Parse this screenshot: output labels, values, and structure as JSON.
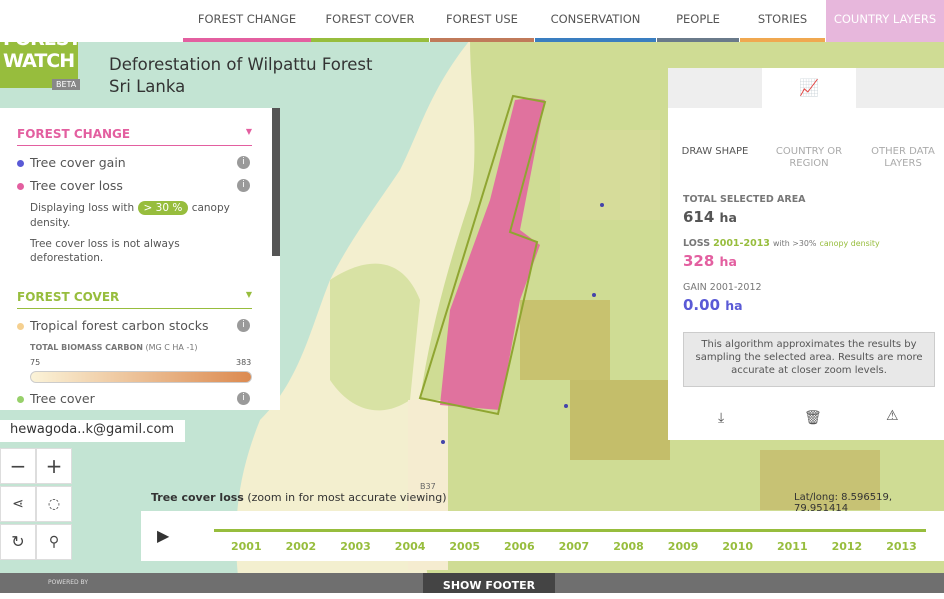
{
  "logo": {
    "title": "GLOBAL FOREST WATCH",
    "badge": "BETA"
  },
  "nav": [
    "FOREST CHANGE",
    "FOREST COVER",
    "FOREST USE",
    "CONSERVATION",
    "PEOPLE",
    "STORIES",
    "COUNTRY LAYERS"
  ],
  "header": {
    "title": "Deforestation of  Wilpattu Forest",
    "subtitle": "Sri Lanka"
  },
  "layers": {
    "forest_change": {
      "heading": "FOREST CHANGE",
      "gain": "Tree cover gain",
      "loss": "Tree cover loss",
      "display_prefix": "Displaying loss with",
      "threshold": "> 30 %",
      "display_suffix": "canopy density.",
      "note": "Tree cover loss is not always deforestation."
    },
    "forest_cover": {
      "heading": "FOREST COVER",
      "carbon": "Tropical forest carbon stocks",
      "legend_title": "TOTAL BIOMASS CARBON",
      "legend_unit": "(MG C HA -1)",
      "legend_min": "75",
      "legend_max": "383",
      "tree_cover": "Tree cover"
    }
  },
  "user": "hewagoda..k@gamil.com",
  "analysis": {
    "tabs": [
      "DRAW SHAPE",
      "COUNTRY OR REGION",
      "OTHER DATA LAYERS"
    ],
    "total_label": "TOTAL SELECTED AREA",
    "total_value": "614",
    "unit": "ha",
    "loss_label": "LOSS",
    "loss_years": "2001-2013",
    "loss_note": "with >30%",
    "loss_note2": "canopy density",
    "loss_value": "328",
    "gain_label": "GAIN 2001-2012",
    "gain_value": "0.00",
    "notice": "This algorithm approximates the results by sampling the selected area. Results are more accurate at closer zoom levels."
  },
  "map": {
    "layer_title": "Tree cover loss",
    "layer_hint": "(zoom in for most accurate viewing)",
    "road": "B37",
    "latlong": "Lat/long: 8.596519, 79.951414"
  },
  "timeline": {
    "years": [
      "2001",
      "2002",
      "2003",
      "2004",
      "2005",
      "2006",
      "2007",
      "2008",
      "2009",
      "2010",
      "2011",
      "2012",
      "2013"
    ]
  },
  "footer": {
    "button": "SHOW FOOTER",
    "powered": "POWERED BY"
  }
}
